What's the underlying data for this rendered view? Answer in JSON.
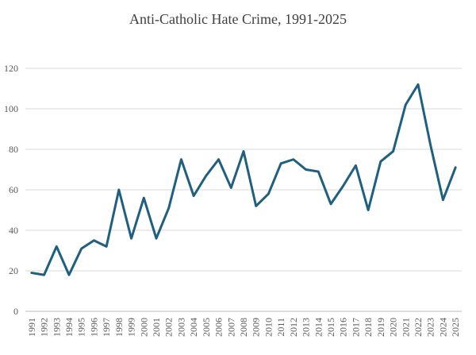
{
  "chart_data": {
    "type": "line",
    "title": "Anti-Catholic Hate Crime, 1991-2025",
    "xlabel": "",
    "ylabel": "",
    "ylim": [
      0,
      120
    ],
    "yticks": [
      0,
      20,
      40,
      60,
      80,
      100,
      120
    ],
    "grid": true,
    "line_color": "#1f5f7f",
    "x": [
      "1991",
      "1992",
      "1993",
      "1994",
      "1995",
      "1996",
      "1997",
      "1998",
      "1999",
      "2000",
      "2001",
      "2002",
      "2003",
      "2004",
      "2005",
      "2006",
      "2007",
      "2008",
      "2009",
      "2010",
      "2011",
      "2012",
      "2013",
      "2014",
      "2015",
      "2016",
      "2017",
      "2018",
      "2019",
      "2020",
      "2021",
      "2022",
      "2023",
      "2024",
      "2025"
    ],
    "series": [
      {
        "values": [
          19,
          18,
          32,
          18,
          31,
          35,
          32,
          60,
          36,
          56,
          36,
          51,
          75,
          57,
          67,
          75,
          61,
          79,
          52,
          58,
          73,
          75,
          70,
          69,
          53,
          62,
          72,
          50,
          74,
          79,
          102,
          112,
          82,
          55,
          71
        ]
      }
    ]
  }
}
